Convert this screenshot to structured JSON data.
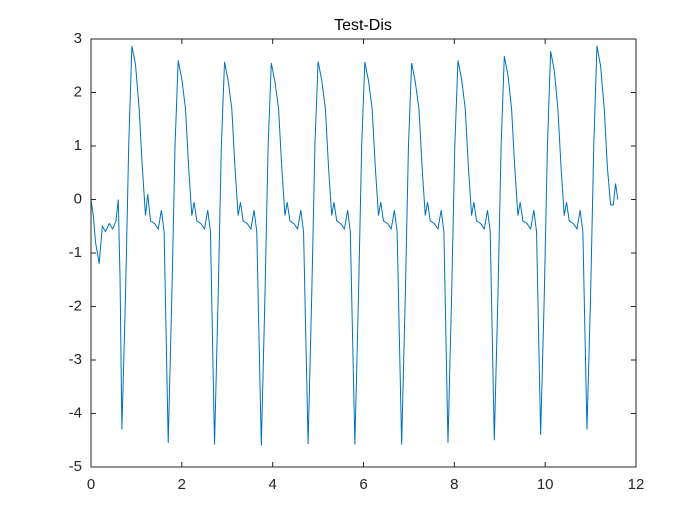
{
  "chart_data": {
    "type": "line",
    "title": "Test-Dis",
    "color": "#0072bd",
    "box": true,
    "xlim": [
      0,
      12
    ],
    "xticks": [
      0,
      2,
      4,
      6,
      8,
      10,
      12
    ],
    "ylim": [
      -5,
      3
    ],
    "yticks": [
      -5,
      -4,
      -3,
      -2,
      -1,
      0,
      1,
      2,
      3
    ],
    "x": [
      0,
      0.05,
      0.1,
      0.18,
      0.25,
      0.32,
      0.4,
      0.48,
      0.55,
      0.6,
      0.64,
      0.68,
      0.76,
      0.83,
      0.9,
      0.98,
      1.06,
      1.13,
      1.2,
      1.25,
      1.31,
      1.4,
      1.48,
      1.55,
      1.61,
      1.7,
      1.78,
      1.85,
      1.92,
      2.0,
      2.08,
      2.15,
      2.22,
      2.27,
      2.33,
      2.42,
      2.5,
      2.57,
      2.63,
      2.72,
      2.8,
      2.87,
      2.94,
      3.02,
      3.1,
      3.17,
      3.24,
      3.29,
      3.35,
      3.44,
      3.52,
      3.59,
      3.65,
      3.75,
      3.83,
      3.9,
      3.97,
      4.05,
      4.13,
      4.2,
      4.27,
      4.32,
      4.38,
      4.47,
      4.55,
      4.62,
      4.68,
      4.78,
      4.86,
      4.93,
      5.0,
      5.08,
      5.16,
      5.23,
      5.3,
      5.35,
      5.41,
      5.5,
      5.58,
      5.65,
      5.71,
      5.81,
      5.89,
      5.96,
      6.03,
      6.11,
      6.19,
      6.26,
      6.33,
      6.38,
      6.44,
      6.53,
      6.61,
      6.68,
      6.74,
      6.84,
      6.92,
      6.99,
      7.06,
      7.14,
      7.22,
      7.29,
      7.36,
      7.41,
      7.47,
      7.56,
      7.64,
      7.71,
      7.77,
      7.86,
      7.94,
      8.01,
      8.08,
      8.16,
      8.24,
      8.31,
      8.38,
      8.43,
      8.49,
      8.58,
      8.66,
      8.73,
      8.79,
      8.88,
      8.96,
      9.03,
      9.1,
      9.18,
      9.26,
      9.33,
      9.4,
      9.45,
      9.51,
      9.6,
      9.68,
      9.75,
      9.81,
      9.9,
      9.98,
      10.05,
      10.12,
      10.2,
      10.28,
      10.35,
      10.42,
      10.47,
      10.53,
      10.62,
      10.7,
      10.77,
      10.83,
      10.92,
      11.0,
      11.07,
      11.14,
      11.22,
      11.3,
      11.37,
      11.44,
      11.5,
      11.55,
      11.6
    ],
    "values": [
      0,
      -0.3,
      -0.8,
      -1.2,
      -0.5,
      -0.6,
      -0.45,
      -0.55,
      -0.4,
      0.0,
      -1.5,
      -4.3,
      -1.8,
      1.0,
      2.87,
      2.52,
      1.7,
      0.6,
      -0.3,
      0.1,
      -0.4,
      -0.45,
      -0.55,
      -0.2,
      -0.6,
      -4.55,
      -1.8,
      1.0,
      2.6,
      2.25,
      1.7,
      0.6,
      -0.3,
      -0.05,
      -0.4,
      -0.45,
      -0.55,
      -0.2,
      -0.6,
      -4.58,
      -1.8,
      1.0,
      2.57,
      2.22,
      1.7,
      0.6,
      -0.3,
      -0.05,
      -0.4,
      -0.45,
      -0.55,
      -0.2,
      -0.6,
      -4.6,
      -1.8,
      1.0,
      2.55,
      2.2,
      1.7,
      0.6,
      -0.3,
      -0.05,
      -0.4,
      -0.45,
      -0.55,
      -0.2,
      -0.6,
      -4.57,
      -1.8,
      1.0,
      2.58,
      2.23,
      1.7,
      0.6,
      -0.3,
      -0.05,
      -0.4,
      -0.45,
      -0.55,
      -0.2,
      -0.6,
      -4.58,
      -1.8,
      1.0,
      2.57,
      2.22,
      1.7,
      0.6,
      -0.3,
      -0.05,
      -0.4,
      -0.45,
      -0.55,
      -0.2,
      -0.6,
      -4.58,
      -1.8,
      1.0,
      2.55,
      2.2,
      1.7,
      0.6,
      -0.3,
      -0.05,
      -0.4,
      -0.45,
      -0.55,
      -0.2,
      -0.6,
      -4.55,
      -1.8,
      1.0,
      2.6,
      2.25,
      1.7,
      0.6,
      -0.3,
      -0.05,
      -0.4,
      -0.45,
      -0.55,
      -0.2,
      -0.6,
      -4.5,
      -1.8,
      1.0,
      2.68,
      2.33,
      1.7,
      0.6,
      -0.3,
      -0.05,
      -0.4,
      -0.45,
      -0.55,
      -0.2,
      -0.6,
      -4.4,
      -1.8,
      1.0,
      2.77,
      2.42,
      1.7,
      0.6,
      -0.3,
      -0.05,
      -0.4,
      -0.45,
      -0.55,
      -0.2,
      -0.6,
      -4.3,
      -1.8,
      1.0,
      2.87,
      2.5,
      1.7,
      0.6,
      -0.1,
      -0.1,
      0.3,
      0.0
    ]
  }
}
